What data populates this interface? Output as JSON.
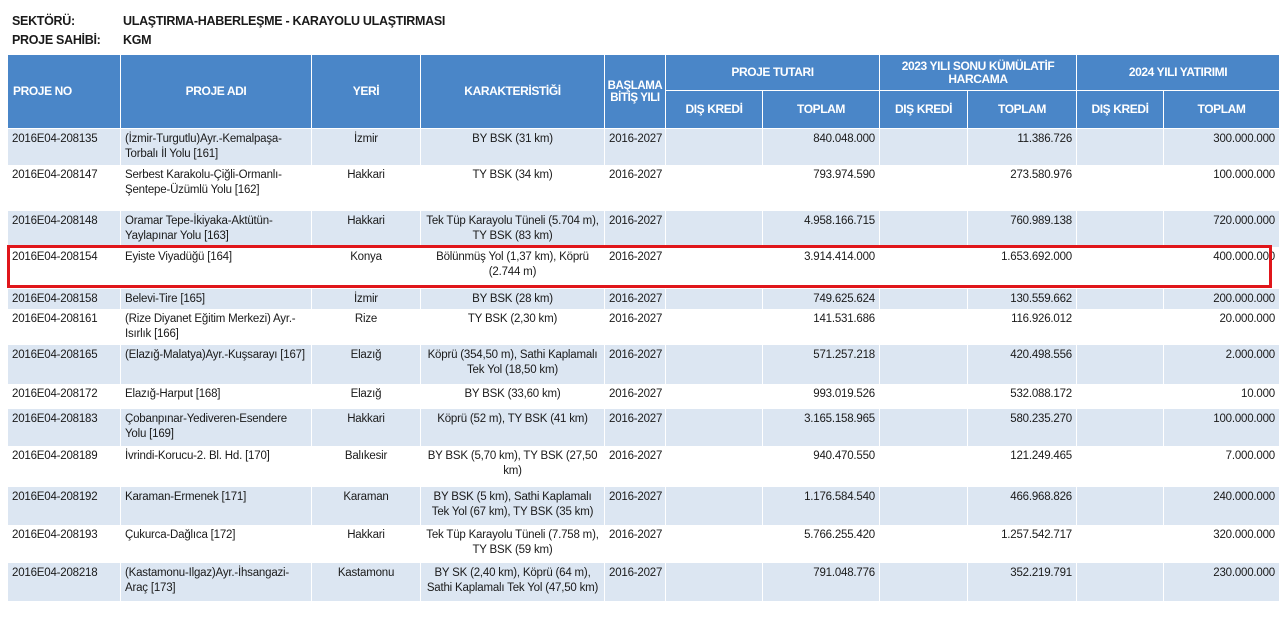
{
  "meta": {
    "sector_label": "SEKTÖRÜ:",
    "sector_value": "ULAŞTIRMA-HABERLEŞME - KARAYOLU ULAŞTIRMASI",
    "owner_label": "PROJE SAHİBİ:",
    "owner_value": "KGM"
  },
  "headers": {
    "proje_no": "PROJE NO",
    "proje_adi": "PROJE ADI",
    "yeri": "YERİ",
    "karakteristigi": "KARAKTERİSTİĞİ",
    "baslama": "BAŞLAMA BİTİŞ YILI",
    "proje_tutari": "PROJE TUTARI",
    "kumulatif": "2023 YILI SONU KÜMÜLATİF HARCAMA",
    "yatirim": "2024 YILI YATIRIMI",
    "dis_kredi": "DIŞ KREDİ",
    "toplam": "TOPLAM"
  },
  "rows": [
    {
      "no": "2016E04-208135",
      "adi": "(İzmir-Turgutlu)Ayr.-Kemalpaşa-Torbalı İl Yolu [161]",
      "yeri": "İzmir",
      "kar": "BY BSK (31 km)",
      "yil": "2016-2027",
      "pt_dis": "",
      "pt_top": "840.048.000",
      "kh_dis": "",
      "kh_top": "11.386.726",
      "yt_dis": "",
      "yt_top": "300.000.000"
    },
    {
      "no": "2016E04-208147",
      "adi": "Serbest Karakolu-Çiğli-Ormanlı-Şentepe-Üzümlü Yolu [162]",
      "yeri": "Hakkari",
      "kar": "TY BSK (34 km)",
      "yil": "2016-2027",
      "pt_dis": "",
      "pt_top": "793.974.590",
      "kh_dis": "",
      "kh_top": "273.580.976",
      "yt_dis": "",
      "yt_top": "100.000.000"
    },
    {
      "no": "2016E04-208148",
      "adi": "Oramar Tepe-İkiyaka-Aktütün-Yaylapınar Yolu [163]",
      "yeri": "Hakkari",
      "kar": "Tek Tüp Karayolu Tüneli (5.704 m), TY BSK (83 km)",
      "yil": "2016-2027",
      "pt_dis": "",
      "pt_top": "4.958.166.715",
      "kh_dis": "",
      "kh_top": "760.989.138",
      "yt_dis": "",
      "yt_top": "720.000.000"
    },
    {
      "no": "2016E04-208154",
      "adi": "Eyiste Viyadüğü [164]",
      "yeri": "Konya",
      "kar": "Bölünmüş Yol (1,37 km), Köprü (2.744 m)",
      "yil": "2016-2027",
      "pt_dis": "",
      "pt_top": "3.914.414.000",
      "kh_dis": "",
      "kh_top": "1.653.692.000",
      "yt_dis": "",
      "yt_top": "400.000.000"
    },
    {
      "no": "2016E04-208158",
      "adi": "Belevi-Tire [165]",
      "yeri": "İzmir",
      "kar": "BY BSK (28 km)",
      "yil": "2016-2027",
      "pt_dis": "",
      "pt_top": "749.625.624",
      "kh_dis": "",
      "kh_top": "130.559.662",
      "yt_dis": "",
      "yt_top": "200.000.000"
    },
    {
      "no": "2016E04-208161",
      "adi": "(Rize Diyanet Eğitim Merkezi) Ayr.-Isırlık [166]",
      "yeri": "Rize",
      "kar": "TY BSK (2,30 km)",
      "yil": "2016-2027",
      "pt_dis": "",
      "pt_top": "141.531.686",
      "kh_dis": "",
      "kh_top": "116.926.012",
      "yt_dis": "",
      "yt_top": "20.000.000"
    },
    {
      "no": "2016E04-208165",
      "adi": "(Elazığ-Malatya)Ayr.-Kuşsarayı [167]",
      "yeri": "Elazığ",
      "kar": "Köprü (354,50 m), Sathi Kaplamalı Tek Yol (18,50 km)",
      "yil": "2016-2027",
      "pt_dis": "",
      "pt_top": "571.257.218",
      "kh_dis": "",
      "kh_top": "420.498.556",
      "yt_dis": "",
      "yt_top": "2.000.000"
    },
    {
      "no": "2016E04-208172",
      "adi": "Elazığ-Harput [168]",
      "yeri": "Elazığ",
      "kar": "BY BSK (33,60 km)",
      "yil": "2016-2027",
      "pt_dis": "",
      "pt_top": "993.019.526",
      "kh_dis": "",
      "kh_top": "532.088.172",
      "yt_dis": "",
      "yt_top": "10.000"
    },
    {
      "no": "2016E04-208183",
      "adi": "Çobanpınar-Yediveren-Esendere Yolu [169]",
      "yeri": "Hakkari",
      "kar": "Köprü (52 m), TY BSK (41 km)",
      "yil": "2016-2027",
      "pt_dis": "",
      "pt_top": "3.165.158.965",
      "kh_dis": "",
      "kh_top": "580.235.270",
      "yt_dis": "",
      "yt_top": "100.000.000"
    },
    {
      "no": "2016E04-208189",
      "adi": "İvrindi-Korucu-2. Bl. Hd. [170]",
      "yeri": "Balıkesir",
      "kar": "BY BSK (5,70 km), TY BSK (27,50 km)",
      "yil": "2016-2027",
      "pt_dis": "",
      "pt_top": "940.470.550",
      "kh_dis": "",
      "kh_top": "121.249.465",
      "yt_dis": "",
      "yt_top": "7.000.000"
    },
    {
      "no": "2016E04-208192",
      "adi": "Karaman-Ermenek [171]",
      "yeri": "Karaman",
      "kar": "BY BSK (5 km), Sathi Kaplamalı Tek Yol (67 km), TY BSK (35 km)",
      "yil": "2016-2027",
      "pt_dis": "",
      "pt_top": "1.176.584.540",
      "kh_dis": "",
      "kh_top": "466.968.826",
      "yt_dis": "",
      "yt_top": "240.000.000"
    },
    {
      "no": "2016E04-208193",
      "adi": "Çukurca-Dağlıca [172]",
      "yeri": "Hakkari",
      "kar": "Tek Tüp Karayolu Tüneli (7.758 m), TY BSK (59 km)",
      "yil": "2016-2027",
      "pt_dis": "",
      "pt_top": "5.766.255.420",
      "kh_dis": "",
      "kh_top": "1.257.542.717",
      "yt_dis": "",
      "yt_top": "320.000.000"
    },
    {
      "no": "2016E04-208218",
      "adi": "(Kastamonu-Ilgaz)Ayr.-İhsangazi-Araç [173]",
      "yeri": "Kastamonu",
      "kar": "BY SK (2,40 km), Köprü (64 m), Sathi Kaplamalı Tek Yol (47,50 km)",
      "yil": "2016-2027",
      "pt_dis": "",
      "pt_top": "791.048.776",
      "kh_dis": "",
      "kh_top": "352.219.791",
      "yt_dis": "",
      "yt_top": "230.000.000"
    }
  ],
  "colors": {
    "header_bg": "#4a86c8",
    "row_alt_bg": "#dce6f2",
    "highlight": "#e0161b"
  }
}
